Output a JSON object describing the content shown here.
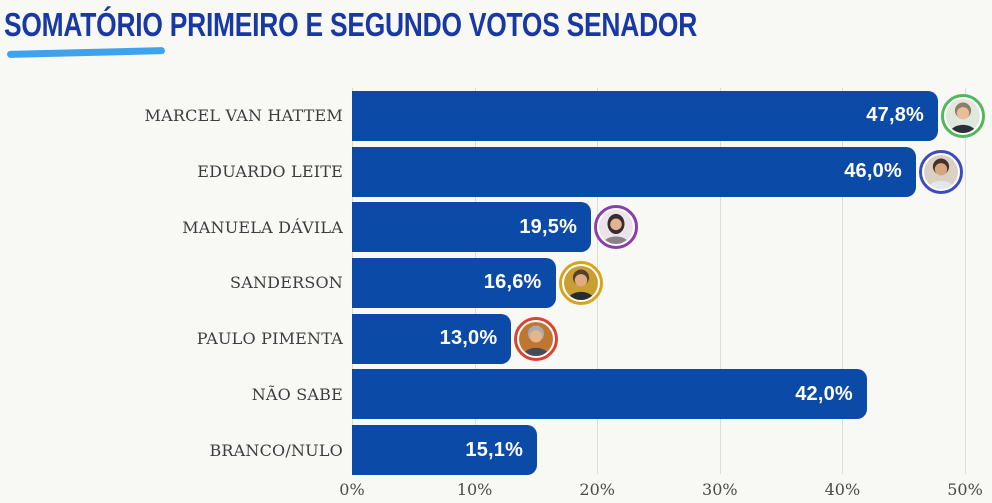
{
  "title": "SOMATÓRIO PRIMEIRO E SEGUNDO VOTOS SENADOR",
  "styles": {
    "title_color": "#1839a3",
    "underline_color": "#3ea2ef",
    "background": "#f8f8f5",
    "grid_color": "#dcdcd8",
    "category_label_color": "#3d3d3d",
    "tick_label_color": "#4a4a4a",
    "value_label_color": "#ffffff"
  },
  "chart_data": {
    "type": "bar",
    "orientation": "horizontal",
    "title": "SOMATÓRIO PRIMEIRO E SEGUNDO VOTOS SENADOR",
    "categories": [
      "MARCEL VAN HATTEM",
      "EDUARDO LEITE",
      "MANUELA DÁVILA",
      "SANDERSON",
      "PAULO PIMENTA",
      "NÃO SABE",
      "BRANCO/NULO"
    ],
    "values": [
      47.8,
      46.0,
      19.5,
      16.6,
      13.0,
      42.0,
      15.1
    ],
    "value_labels": [
      "47,8%",
      "46,0%",
      "19,5%",
      "16,6%",
      "13,0%",
      "42,0%",
      "15,1%"
    ],
    "xlabel": "",
    "ylabel": "",
    "xlim": [
      0,
      50
    ],
    "x_ticks": [
      "0%",
      "10%",
      "20%",
      "30%",
      "40%",
      "50%"
    ],
    "grid": true,
    "legend": false,
    "bar_color": "#0b4aa6",
    "rows": [
      {
        "label": "MARCEL VAN HATTEM",
        "value": 47.8,
        "value_label": "47,8%",
        "avatar": {
          "ring": "#52b85a",
          "bg": "#dfe8dc",
          "hair": "#8f7d68",
          "skin": "#e9bd98",
          "suit": "#2b3038"
        }
      },
      {
        "label": "EDUARDO LEITE",
        "value": 46.0,
        "value_label": "46,0%",
        "avatar": {
          "ring": "#3c4bbf",
          "bg": "#d9d2c4",
          "hair": "#42332a",
          "skin": "#d9a57e",
          "suit": "#e3e6ea"
        }
      },
      {
        "label": "MANUELA DÁVILA",
        "value": 19.5,
        "value_label": "19,5%",
        "avatar": {
          "ring": "#8a3fae",
          "bg": "#e9e3ec",
          "hair": "#3a2c2e",
          "skin": "#e3b393",
          "suit": "#8c8286"
        }
      },
      {
        "label": "SANDERSON",
        "value": 16.6,
        "value_label": "16,6%",
        "avatar": {
          "ring": "#d8a31d",
          "bg": "#c99f33",
          "hair": "#55402e",
          "skin": "#e0ac80",
          "suit": "#272c33"
        }
      },
      {
        "label": "PAULO PIMENTA",
        "value": 13.0,
        "value_label": "13,0%",
        "avatar": {
          "ring": "#d64533",
          "bg": "#c1762f",
          "hair": "#a8abae",
          "skin": "#e5b58c",
          "suit": "#434c57"
        }
      },
      {
        "label": "NÃO SABE",
        "value": 42.0,
        "value_label": "42,0%",
        "avatar": null
      },
      {
        "label": "BRANCO/NULO",
        "value": 15.1,
        "value_label": "15,1%",
        "avatar": null
      }
    ]
  }
}
